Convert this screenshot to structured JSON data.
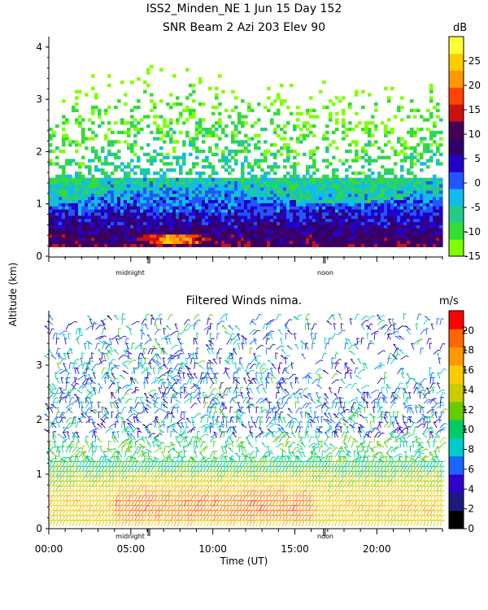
{
  "header": {
    "title_line1": "ISS2_Minden_NE    1 Jun 15 Day 152",
    "title_line2": "SNR Beam 2 Azi 203 Elev 90"
  },
  "shared": {
    "ylabel": "Altitude (km)",
    "xlabel": "Time (UT)",
    "midnight_label": "midnight",
    "noon_label": "noon",
    "x_tick_labels": [
      "00:00",
      "05:00",
      "10:00",
      "15:00",
      "20:00"
    ]
  },
  "chart_data": [
    {
      "type": "heatmap",
      "title": "SNR Beam 2 Azi 203 Elev 90",
      "ylabel": "Altitude (km)",
      "ylim": [
        0,
        4.2
      ],
      "xlim": [
        0,
        24
      ],
      "y_ticks": [
        "0",
        "1",
        "2",
        "3",
        "4"
      ],
      "colorbar": {
        "unit": "dB",
        "range": [
          -15,
          30
        ],
        "tick_labels": [
          "25",
          "20",
          "15",
          "10",
          "5",
          "0",
          "-5",
          "-10",
          "-15"
        ],
        "colors": [
          "#7fff00",
          "#33dd33",
          "#22cc88",
          "#11bbee",
          "#2255ff",
          "#2200cc",
          "#330066",
          "#440055",
          "#cc1111",
          "#ff4400",
          "#ff9900",
          "#ffcc00",
          "#ffff33"
        ]
      },
      "description_levels": [
        {
          "name": "low-level strong echo",
          "snr_db": [
            15,
            25
          ],
          "alt_km": [
            0.2,
            0.4
          ],
          "time_ut": [
            5.5,
            9.5
          ]
        }
      ]
    },
    {
      "type": "scatter",
      "subtype": "wind-barbs",
      "title": "Filtered Winds nima.",
      "ylabel": "Altitude (km)",
      "xlabel": "Time (UT)",
      "ylim": [
        0,
        4
      ],
      "xlim": [
        0,
        24
      ],
      "y_ticks": [
        "0",
        "1",
        "2",
        "3"
      ],
      "colorbar": {
        "unit": "m/s",
        "range": [
          0,
          22
        ],
        "tick_labels": [
          "20",
          "18",
          "16",
          "14",
          "12",
          "10",
          "8",
          "6",
          "4",
          "2",
          "0"
        ],
        "colors": [
          "#000000",
          "#1a1a80",
          "#3300cc",
          "#1a66ff",
          "#00cccc",
          "#00cc66",
          "#66cc00",
          "#cccc00",
          "#ffcc00",
          "#ff9900",
          "#ff6600",
          "#ff0000"
        ]
      }
    }
  ]
}
